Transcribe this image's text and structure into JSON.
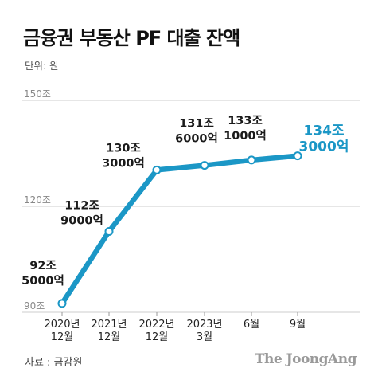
{
  "title": "금융권 부동산 PF 대출 잔액",
  "unit_label": "단위: 원",
  "source": "자료 : 금감원",
  "brand": "The JoongAng",
  "colors": {
    "line": "#1b97c6",
    "highlight": "#1b97c6",
    "grid": "#cccccc",
    "text": "#1a1a1a"
  },
  "chart_data": {
    "type": "line",
    "title": "금융권 부동산 PF 대출 잔액",
    "ylabel": "",
    "xlabel": "",
    "ylim": [
      90,
      150
    ],
    "y_ticks": [
      {
        "value": 150,
        "label": "150조"
      },
      {
        "value": 120,
        "label": "120조"
      },
      {
        "value": 90,
        "label": "90조"
      }
    ],
    "grid": true,
    "x_labels": [
      [
        "2020년",
        "12월"
      ],
      [
        "2021년",
        "12월"
      ],
      [
        "2022년",
        "12월"
      ],
      [
        "2023년",
        "3월"
      ],
      [
        "6월"
      ],
      [
        "9월"
      ]
    ],
    "values": [
      92.5,
      112.9,
      130.3,
      131.6,
      133.1,
      134.3
    ],
    "data_labels": [
      [
        "92조",
        "5000억"
      ],
      [
        "112조",
        "9000억"
      ],
      [
        "130조",
        "3000억"
      ],
      [
        "131조",
        "6000억"
      ],
      [
        "133조",
        "1000억"
      ],
      [
        "134조",
        "3000억"
      ]
    ],
    "highlight_index": 5
  }
}
